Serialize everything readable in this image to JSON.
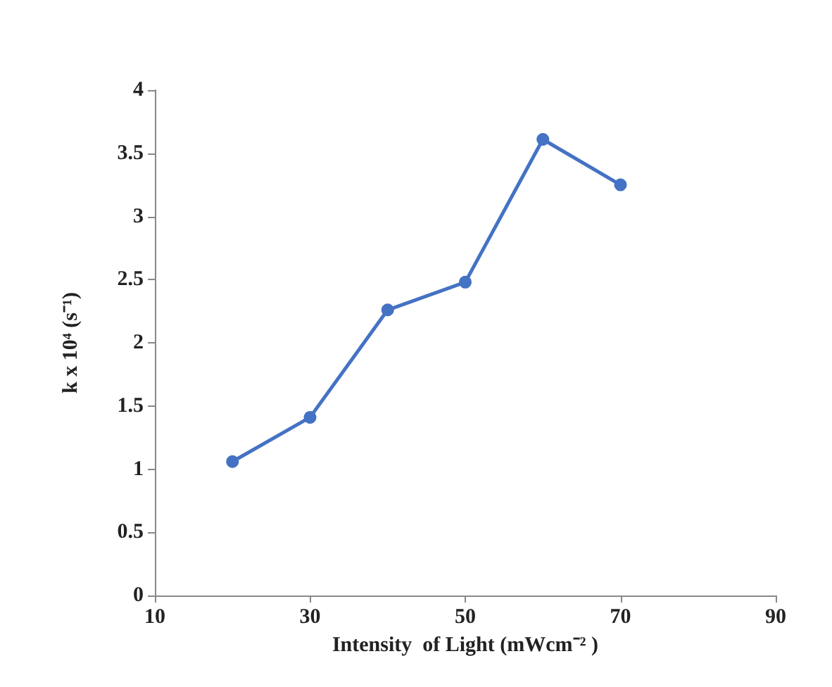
{
  "chart_data": {
    "type": "line",
    "xlabel": "Intensity  of Light (mWcm⁻² )",
    "ylabel": "k x 10⁴ (s⁻¹)",
    "x": [
      20,
      30,
      40,
      50,
      60,
      70
    ],
    "series": [
      {
        "color": "#4472c4",
        "values": [
          1.06,
          1.41,
          2.26,
          2.48,
          3.61,
          3.25
        ]
      }
    ],
    "xlim": [
      10,
      90
    ],
    "xticks": [
      10,
      30,
      50,
      70,
      90
    ],
    "ylim": [
      0,
      4
    ],
    "yticks": [
      0,
      0.5,
      1,
      1.5,
      2,
      2.5,
      3,
      3.5,
      4
    ],
    "grid": false,
    "marker": "circle",
    "line_style": "solid"
  }
}
